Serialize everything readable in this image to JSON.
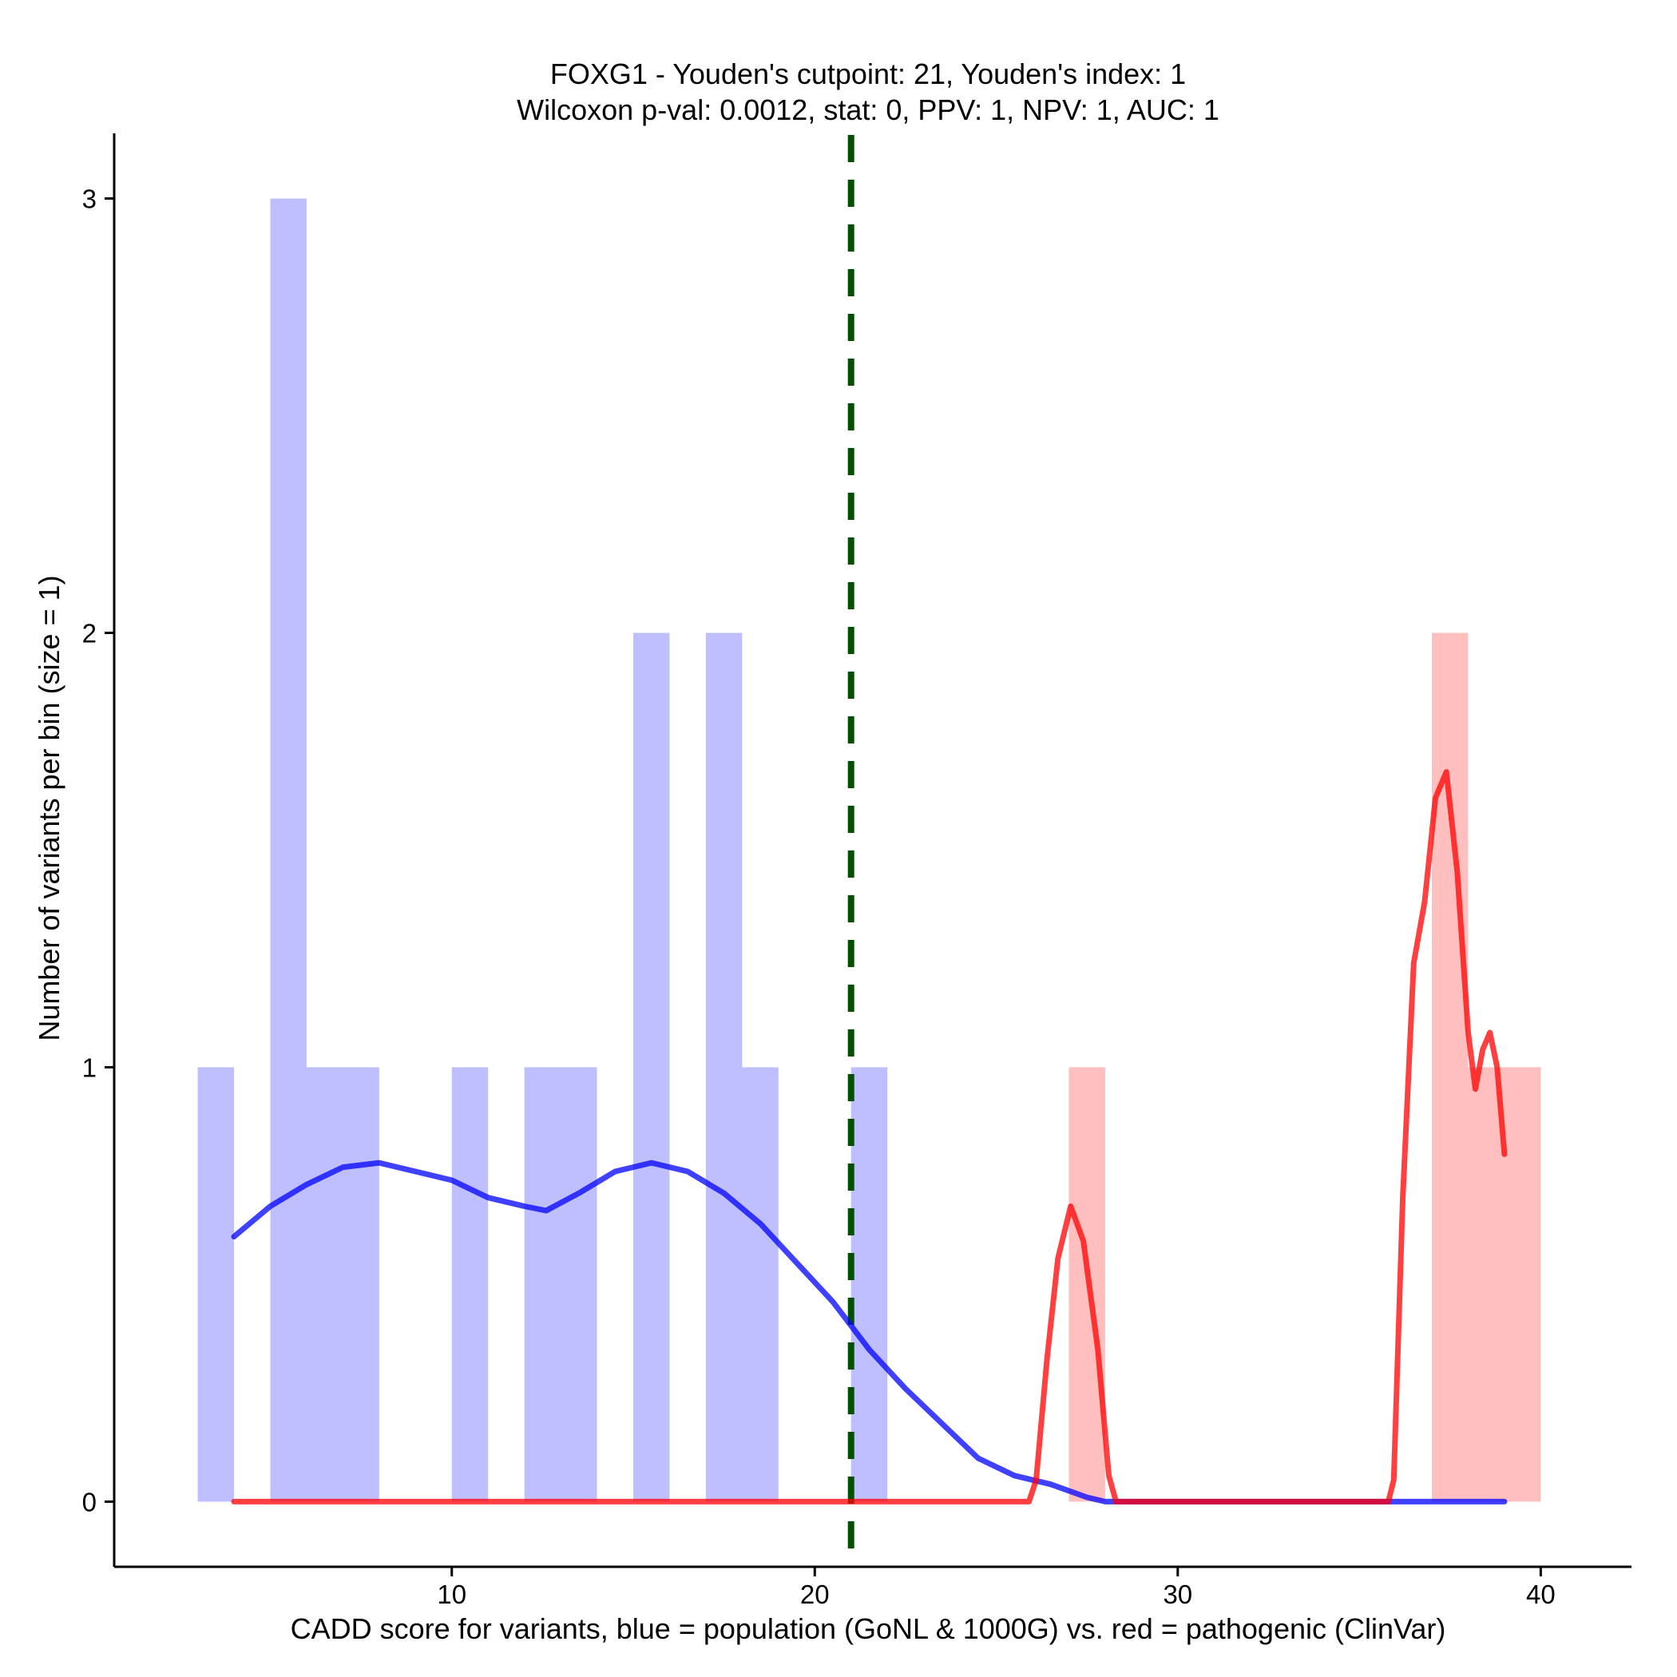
{
  "chart_data": {
    "type": "bar",
    "title": "FOXG1 - Youden's cutpoint: 21, Youden's index: 1",
    "subtitle": "Wilcoxon p-val: 0.0012, stat: 0, PPV: 1, NPV: 1, AUC: 1",
    "xlabel": "CADD score for variants, blue = population (GoNL & 1000G) vs. red = pathogenic (ClinVar)",
    "ylabel": "Number of variants per bin (size = 1)",
    "xlim": [
      0.7,
      42.5
    ],
    "ylim": [
      -0.15,
      3.15
    ],
    "x_ticks": [
      10,
      20,
      30,
      40
    ],
    "y_ticks": [
      0,
      1,
      2,
      3
    ],
    "bin_width": 1,
    "cutpoint": 21,
    "series": [
      {
        "name": "population",
        "color": "#0000ff",
        "bins": [
          {
            "start": 3,
            "count": 1
          },
          {
            "start": 5,
            "count": 3
          },
          {
            "start": 6,
            "count": 1
          },
          {
            "start": 7,
            "count": 1
          },
          {
            "start": 10,
            "count": 1
          },
          {
            "start": 12,
            "count": 1
          },
          {
            "start": 13,
            "count": 1
          },
          {
            "start": 15,
            "count": 2
          },
          {
            "start": 17,
            "count": 2
          },
          {
            "start": 18,
            "count": 1
          },
          {
            "start": 21,
            "count": 1
          }
        ],
        "density": [
          [
            4,
            0.61
          ],
          [
            5,
            0.68
          ],
          [
            6,
            0.73
          ],
          [
            7,
            0.77
          ],
          [
            8,
            0.78
          ],
          [
            9,
            0.76
          ],
          [
            10,
            0.74
          ],
          [
            11,
            0.7
          ],
          [
            12,
            0.68
          ],
          [
            12.6,
            0.67
          ],
          [
            13.5,
            0.71
          ],
          [
            14.5,
            0.76
          ],
          [
            15.5,
            0.78
          ],
          [
            16.5,
            0.76
          ],
          [
            17.5,
            0.71
          ],
          [
            18.5,
            0.64
          ],
          [
            19.5,
            0.55
          ],
          [
            20.5,
            0.46
          ],
          [
            21.5,
            0.35
          ],
          [
            22.5,
            0.26
          ],
          [
            23.5,
            0.18
          ],
          [
            24.5,
            0.1
          ],
          [
            25.5,
            0.06
          ],
          [
            26.5,
            0.04
          ],
          [
            27.5,
            0.01
          ],
          [
            28,
            0.0
          ],
          [
            39,
            0.0
          ]
        ]
      },
      {
        "name": "pathogenic",
        "color": "#ff0000",
        "bins": [
          {
            "start": 27,
            "count": 1
          },
          {
            "start": 37,
            "count": 2
          },
          {
            "start": 38,
            "count": 1
          },
          {
            "start": 39,
            "count": 1
          }
        ],
        "density": [
          [
            4,
            0.0
          ],
          [
            25.9,
            0.0
          ],
          [
            26.1,
            0.05
          ],
          [
            26.4,
            0.33
          ],
          [
            26.7,
            0.56
          ],
          [
            27.05,
            0.68
          ],
          [
            27.4,
            0.6
          ],
          [
            27.8,
            0.35
          ],
          [
            28.1,
            0.06
          ],
          [
            28.3,
            0.0
          ],
          [
            35.8,
            0.0
          ],
          [
            35.95,
            0.05
          ],
          [
            36.2,
            0.7
          ],
          [
            36.5,
            1.24
          ],
          [
            36.8,
            1.38
          ],
          [
            37.1,
            1.62
          ],
          [
            37.4,
            1.68
          ],
          [
            37.7,
            1.45
          ],
          [
            38.0,
            1.08
          ],
          [
            38.2,
            0.95
          ],
          [
            38.4,
            1.04
          ],
          [
            38.6,
            1.08
          ],
          [
            38.8,
            1.0
          ],
          [
            39.0,
            0.8
          ]
        ]
      }
    ]
  }
}
